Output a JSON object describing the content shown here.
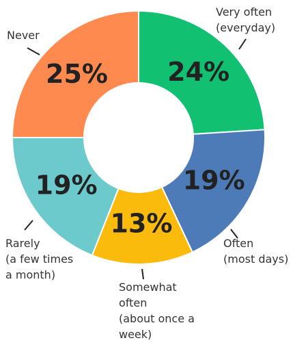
{
  "chart_data": {
    "type": "donut",
    "categories": [
      "Very often\n(everyday)",
      "Often\n(most days)",
      "Somewhat\noften\n(about once a\nweek)",
      "Rarely\n(a few times\na month)",
      "Never"
    ],
    "values": [
      24,
      19,
      13,
      19,
      25
    ],
    "value_labels": [
      "24%",
      "19%",
      "13%",
      "19%",
      "25%"
    ],
    "colors": [
      "#12c071",
      "#4c7bb8",
      "#fabb0c",
      "#6ccacd",
      "#fe8a50"
    ]
  }
}
